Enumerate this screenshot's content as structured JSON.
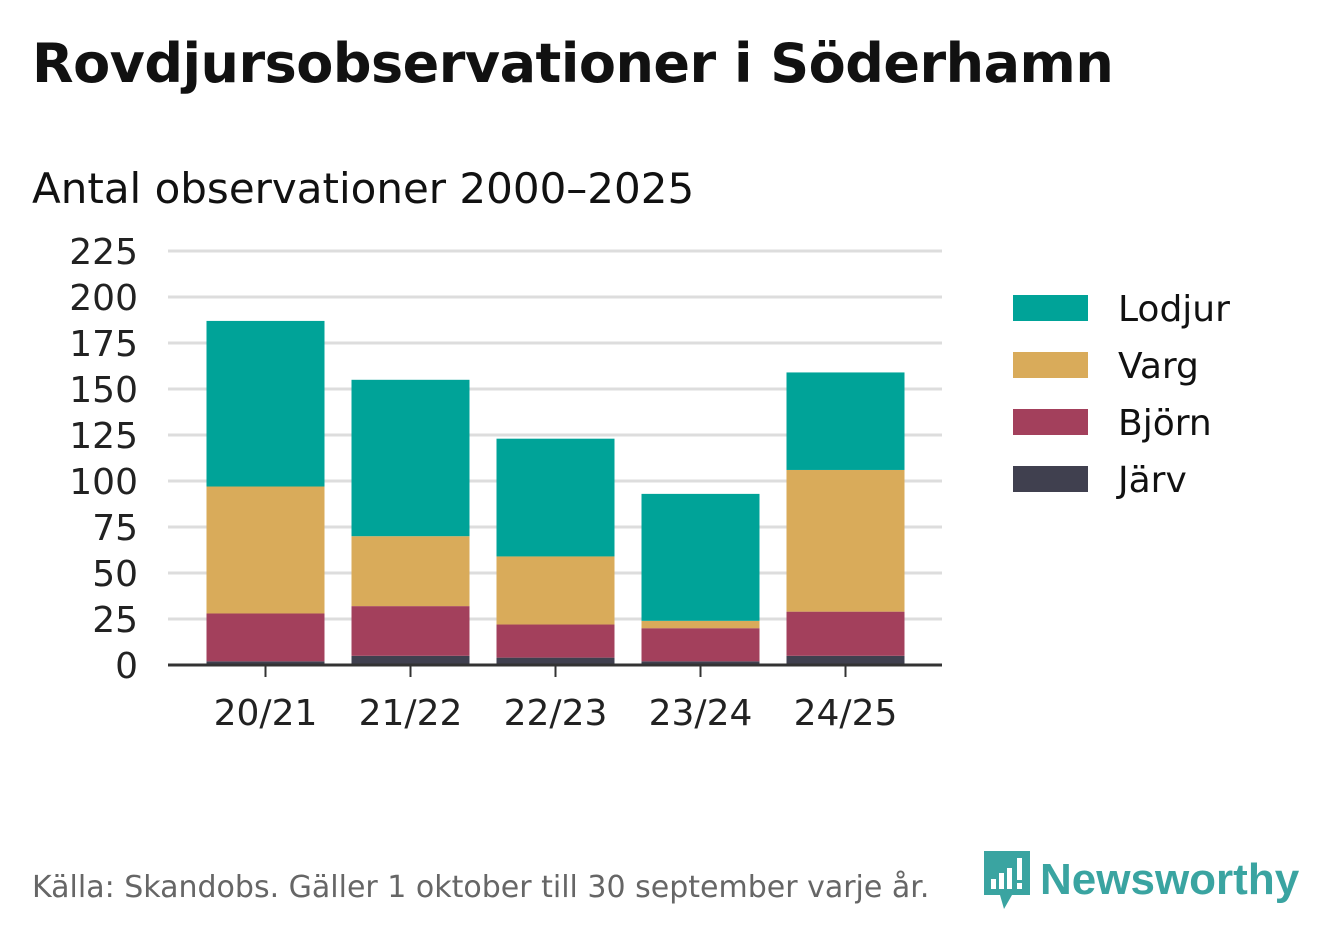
{
  "title": "Rovdjursobservationer i Söderhamn",
  "subtitle": "Antal observationer 2000–2025",
  "footer": "Källa: Skandobs. Gäller 1 oktober till 30 september varje år.",
  "brand": "Newsworthy",
  "colors": {
    "lodjur": "#00a398",
    "varg": "#d9ab5a",
    "bjorn": "#a3405c",
    "jarv": "#40404f",
    "grid": "#dddddd",
    "axis": "#333333",
    "brand": "#3aa4a1"
  },
  "chart_data": {
    "type": "bar",
    "stacked": true,
    "categories": [
      "20/21",
      "21/22",
      "22/23",
      "23/24",
      "24/25"
    ],
    "series": [
      {
        "name": "Järv",
        "key": "jarv",
        "values": [
          2,
          5,
          4,
          2,
          5
        ]
      },
      {
        "name": "Björn",
        "key": "bjorn",
        "values": [
          26,
          27,
          18,
          18,
          24
        ]
      },
      {
        "name": "Varg",
        "key": "varg",
        "values": [
          69,
          38,
          37,
          4,
          77
        ]
      },
      {
        "name": "Lodjur",
        "key": "lodjur",
        "values": [
          90,
          85,
          64,
          69,
          53
        ]
      }
    ],
    "legend_order": [
      "Lodjur",
      "Varg",
      "Björn",
      "Järv"
    ],
    "yticks": [
      0,
      25,
      50,
      75,
      100,
      125,
      150,
      175,
      200,
      225
    ],
    "ylim": [
      0,
      225
    ],
    "grid": true,
    "legend_position": "right"
  }
}
